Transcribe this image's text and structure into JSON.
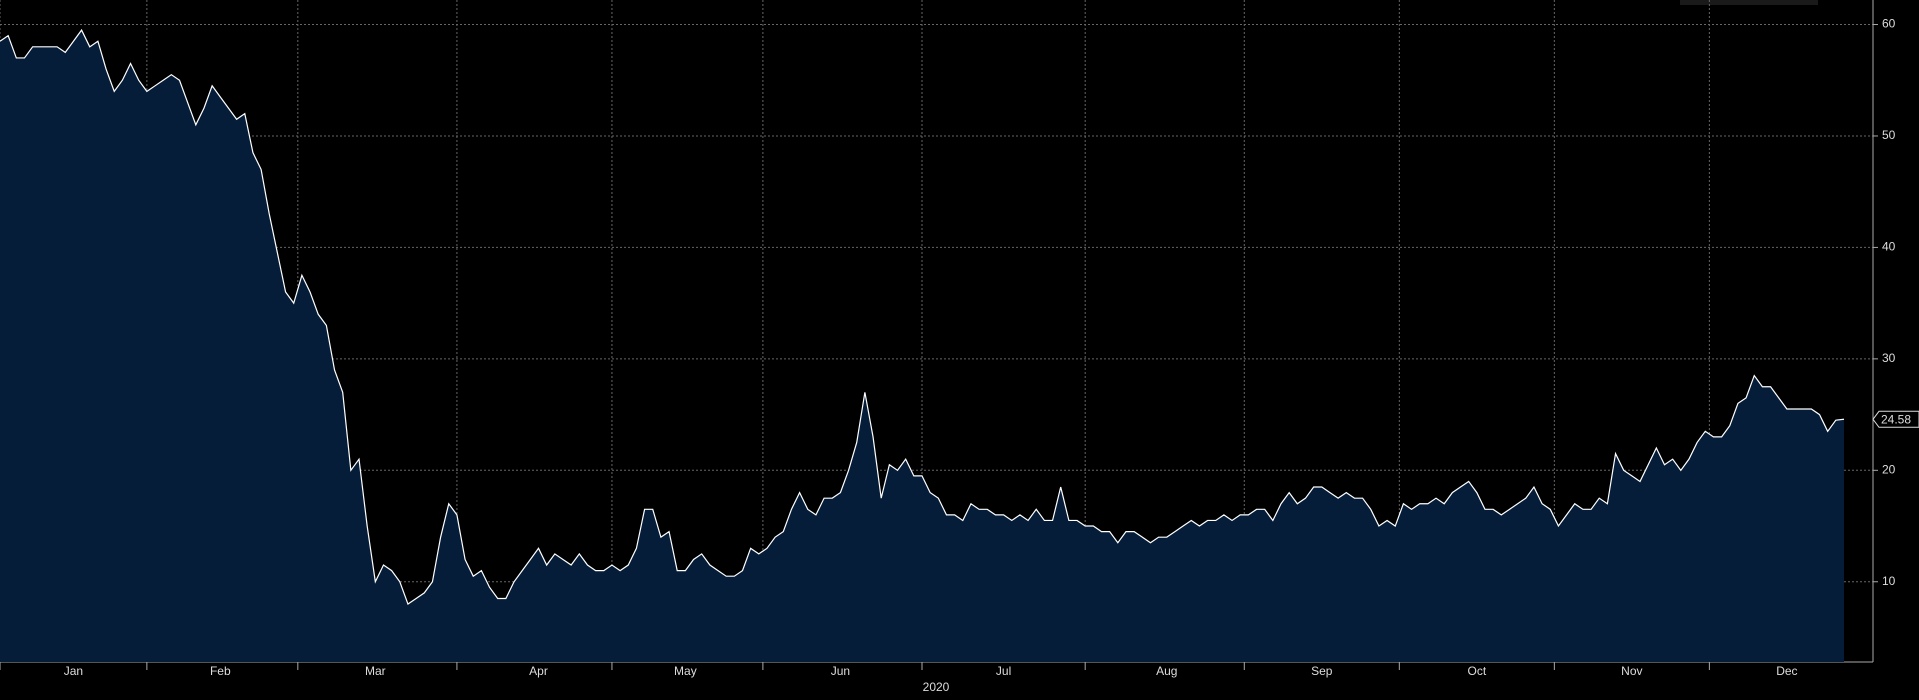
{
  "chart_data": {
    "type": "area",
    "x_label": "2020",
    "categories": [
      null,
      null,
      null,
      null,
      null,
      null,
      null,
      null,
      null,
      "Jan",
      null,
      null,
      null,
      null,
      null,
      null,
      null,
      null,
      null,
      null,
      null,
      null,
      null,
      null,
      null,
      null,
      null,
      "Feb",
      null,
      null,
      null,
      null,
      null,
      null,
      null,
      null,
      null,
      null,
      null,
      null,
      null,
      null,
      null,
      null,
      null,
      null,
      "Mar",
      null,
      null,
      null,
      null,
      null,
      null,
      null,
      null,
      null,
      null,
      null,
      null,
      null,
      null,
      null,
      null,
      null,
      null,
      null,
      "Apr",
      null,
      null,
      null,
      null,
      null,
      null,
      null,
      null,
      null,
      null,
      null,
      null,
      null,
      null,
      null,
      null,
      null,
      "May",
      null,
      null,
      null,
      null,
      null,
      null,
      null,
      null,
      null,
      null,
      null,
      null,
      null,
      null,
      null,
      null,
      null,
      null,
      "Jun",
      null,
      null,
      null,
      null,
      null,
      null,
      null,
      null,
      null,
      null,
      null,
      null,
      null,
      null,
      null,
      null,
      null,
      null,
      null,
      "Jul",
      null,
      null,
      null,
      null,
      null,
      null,
      null,
      null,
      null,
      null,
      null,
      null,
      null,
      null,
      null,
      null,
      null,
      null,
      null,
      "Aug",
      null,
      null,
      null,
      null,
      null,
      null,
      null,
      null,
      null,
      null,
      null,
      null,
      null,
      null,
      null,
      null,
      null,
      null,
      "Sep",
      null,
      null,
      null,
      null,
      null,
      null,
      null,
      null,
      null,
      null,
      null,
      null,
      null,
      null,
      null,
      null,
      null,
      null,
      "Oct",
      null,
      null,
      null,
      null,
      null,
      null,
      null,
      null,
      null,
      null,
      null,
      null,
      null,
      null,
      null,
      null,
      null,
      null,
      "Nov",
      null,
      null,
      null,
      null,
      null,
      null,
      null,
      null,
      null,
      null,
      null,
      null,
      null,
      null,
      null,
      null,
      null,
      null,
      "Dec",
      null,
      null,
      null,
      null,
      null,
      null,
      null
    ],
    "values": [
      58.5,
      59,
      57,
      57,
      58,
      58,
      58,
      58,
      57.5,
      58.5,
      59.5,
      58,
      58.5,
      56,
      54,
      55,
      56.5,
      55,
      54,
      54.5,
      55,
      55.5,
      55,
      53,
      51,
      52.5,
      54.5,
      53.5,
      52.5,
      51.5,
      52,
      48.5,
      47,
      43,
      39.5,
      36,
      35,
      37.5,
      36,
      34,
      33,
      29,
      27,
      20,
      21,
      15,
      10,
      11.5,
      11,
      10,
      8,
      8.5,
      9,
      10,
      14,
      17,
      16,
      12,
      10.5,
      11,
      9.5,
      8.5,
      8.5,
      10,
      11,
      12,
      13,
      11.5,
      12.5,
      12,
      11.5,
      12.5,
      11.5,
      11,
      11,
      11.5,
      11,
      11.5,
      13,
      16.5,
      16.5,
      14,
      14.5,
      11,
      11,
      12,
      12.5,
      11.5,
      11,
      10.5,
      10.5,
      11,
      13,
      12.5,
      13,
      14,
      14.5,
      16.5,
      18,
      16.5,
      16,
      17.5,
      17.5,
      18,
      20,
      22.5,
      27,
      23,
      17.5,
      20.5,
      20,
      21,
      19.5,
      19.5,
      18,
      17.5,
      16,
      16,
      15.5,
      17,
      16.5,
      16.5,
      16,
      16,
      15.5,
      16,
      15.5,
      16.5,
      15.5,
      15.5,
      18.5,
      15.5,
      15.5,
      15,
      15,
      14.5,
      14.5,
      13.5,
      14.5,
      14.5,
      14,
      13.5,
      14,
      14,
      14.5,
      15,
      15.5,
      15,
      15.5,
      15.5,
      16,
      15.5,
      16,
      16,
      16.5,
      16.5,
      15.5,
      17,
      18,
      17,
      17.5,
      18.5,
      18.5,
      18,
      17.5,
      18,
      17.5,
      17.5,
      16.5,
      15,
      15.5,
      15,
      17,
      16.5,
      17,
      17,
      17.5,
      17,
      18,
      18.5,
      19,
      18,
      16.5,
      16.5,
      16,
      16.5,
      17,
      17.5,
      18.5,
      17,
      16.5,
      15,
      16,
      17,
      16.5,
      16.5,
      17.5,
      17,
      21.5,
      20,
      19.5,
      19,
      20.5,
      22,
      20.5,
      21,
      20,
      21,
      22.5,
      23.5,
      23,
      23,
      24,
      26,
      26.5,
      28.5,
      27.5,
      27.5,
      26.5,
      25.5,
      25.5,
      25.5,
      25.5,
      25,
      23.5,
      24.5,
      24.58
    ],
    "color": "#061d3a",
    "line_color": "#ffffff",
    "ylim": [
      2.8,
      62.2
    ],
    "yticks": [
      10,
      20,
      30,
      40,
      50,
      60
    ],
    "grid": true
  }
}
